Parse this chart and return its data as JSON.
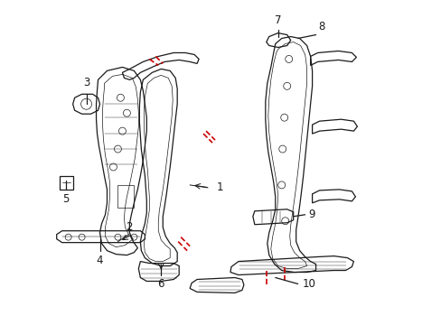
{
  "bg_color": "#ffffff",
  "line_color": "#1a1a1a",
  "red_color": "#cc0000",
  "figsize": [
    4.89,
    3.6
  ],
  "dpi": 100,
  "lw_main": 0.9,
  "lw_thin": 0.5,
  "label_fontsize": 8.5
}
